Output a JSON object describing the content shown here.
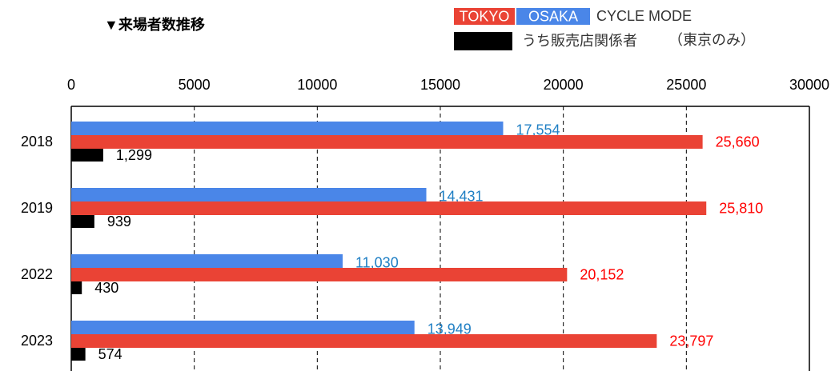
{
  "chart_data": {
    "type": "bar",
    "orientation": "horizontal",
    "title": "▼来場者数推移",
    "legend_text": "CYCLE MODE",
    "legend_note": "（東京のみ）",
    "categories": [
      "2018",
      "2019",
      "2022",
      "2023"
    ],
    "series": [
      {
        "name": "OSAKA",
        "color": "#4a86e8",
        "label_color": "#1f7fc4",
        "values": [
          17554,
          14431,
          11030,
          13949
        ],
        "value_labels": [
          "17,554",
          "14,431",
          "11,030",
          "13,949"
        ]
      },
      {
        "name": "TOKYO",
        "color": "#ea4335",
        "label_color": "#ff0000",
        "values": [
          25660,
          25810,
          20152,
          23797
        ],
        "value_labels": [
          "25,660",
          "25,810",
          "20,152",
          "23,797"
        ]
      },
      {
        "name": "うち販売店関係者",
        "color": "#000000",
        "label_color": "#000000",
        "values": [
          1299,
          939,
          430,
          574
        ],
        "value_labels": [
          "1,299",
          "939",
          "430",
          "574"
        ]
      }
    ],
    "xlim": [
      0,
      30000
    ],
    "xticks": [
      0,
      5000,
      10000,
      15000,
      20000,
      25000,
      30000
    ],
    "grid": true
  }
}
